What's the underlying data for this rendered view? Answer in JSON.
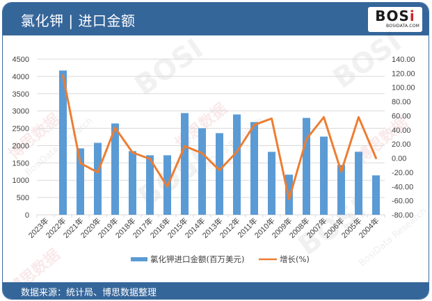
{
  "header": {
    "title": "氯化钾 | 进口金额",
    "logo_main_left": "BOS",
    "logo_main_right": "i",
    "logo_sub": "BOSIDATA.COM"
  },
  "footer": {
    "source": "数据来源：统计局、博思数据整理"
  },
  "watermarks": {
    "cn": "博思数据",
    "en": "BosiData Research",
    "logo": "BOSI"
  },
  "colors": {
    "header_bg": "#35669a",
    "bar": "#5b9bd5",
    "line": "#ed7d31",
    "grid": "#d9d9d9",
    "axis_text": "#404040"
  },
  "chart_data": {
    "type": "bar+line",
    "title": "氯化钾 | 进口金额",
    "xlabel": "",
    "ylabel": "",
    "categories": [
      "2023年",
      "2022年",
      "2021年",
      "2020年",
      "2019年",
      "2018年",
      "2017年",
      "2016年",
      "2015年",
      "2014年",
      "2013年",
      "2012年",
      "2011年",
      "2010年",
      "2009年",
      "2008年",
      "2007年",
      "2006年",
      "2005年",
      "2004年"
    ],
    "series": [
      {
        "name": "氯化钾进口金额(百万美元)",
        "type": "bar",
        "axis": "left",
        "values": [
          null,
          4170,
          1920,
          2080,
          2640,
          1840,
          1720,
          1720,
          2940,
          2500,
          2360,
          2900,
          2680,
          1820,
          1160,
          2800,
          2260,
          1440,
          1820,
          1140
        ]
      },
      {
        "name": "增长(%)",
        "type": "line",
        "axis": "right",
        "values": [
          null,
          117,
          -7,
          -20,
          43,
          8,
          -1,
          -40,
          17,
          7,
          -17,
          9,
          47,
          56,
          -58,
          27,
          58,
          -19,
          58,
          0
        ]
      }
    ],
    "y_left": {
      "min": 0,
      "max": 4500,
      "step": 500,
      "ticks": [
        "0",
        "500",
        "1000",
        "1500",
        "2000",
        "2500",
        "3000",
        "3500",
        "4000",
        "4500"
      ]
    },
    "y_right": {
      "min": -80,
      "max": 140,
      "step": 20,
      "ticks": [
        "-80.00",
        "-60.00",
        "-40.00",
        "-20.00",
        "0.00",
        "20.00",
        "40.00",
        "60.00",
        "80.00",
        "100.00",
        "120.00",
        "140.00"
      ]
    },
    "grid": true,
    "legend_position": "bottom"
  }
}
